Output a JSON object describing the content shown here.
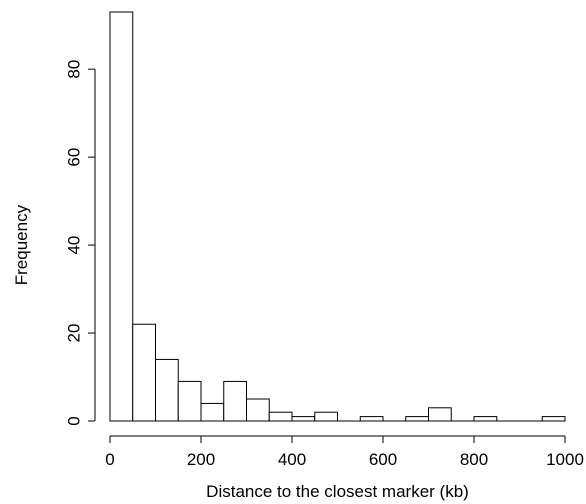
{
  "chart_data": {
    "type": "bar",
    "subtype": "histogram",
    "title": "",
    "xlabel": "Distance to the closest marker (kb)",
    "ylabel": "Frequency",
    "bin_width": 50,
    "bins": [
      {
        "start": 0,
        "end": 50,
        "count": 93
      },
      {
        "start": 50,
        "end": 100,
        "count": 22
      },
      {
        "start": 100,
        "end": 150,
        "count": 14
      },
      {
        "start": 150,
        "end": 200,
        "count": 9
      },
      {
        "start": 200,
        "end": 250,
        "count": 4
      },
      {
        "start": 250,
        "end": 300,
        "count": 9
      },
      {
        "start": 300,
        "end": 350,
        "count": 5
      },
      {
        "start": 350,
        "end": 400,
        "count": 2
      },
      {
        "start": 400,
        "end": 450,
        "count": 1
      },
      {
        "start": 450,
        "end": 500,
        "count": 2
      },
      {
        "start": 500,
        "end": 550,
        "count": 0
      },
      {
        "start": 550,
        "end": 600,
        "count": 1
      },
      {
        "start": 600,
        "end": 650,
        "count": 0
      },
      {
        "start": 650,
        "end": 700,
        "count": 1
      },
      {
        "start": 700,
        "end": 750,
        "count": 3
      },
      {
        "start": 750,
        "end": 800,
        "count": 0
      },
      {
        "start": 800,
        "end": 850,
        "count": 1
      },
      {
        "start": 850,
        "end": 900,
        "count": 0
      },
      {
        "start": 900,
        "end": 950,
        "count": 0
      },
      {
        "start": 950,
        "end": 1000,
        "count": 1
      }
    ],
    "xlim": [
      0,
      1000
    ],
    "ylim": [
      0,
      93
    ],
    "xticks": [
      0,
      200,
      400,
      600,
      800,
      1000
    ],
    "yticks": [
      0,
      20,
      40,
      60,
      80
    ],
    "grid": false,
    "legend": "none"
  }
}
